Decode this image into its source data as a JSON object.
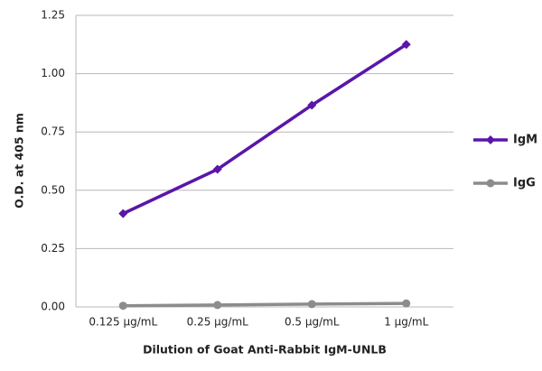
{
  "chart_data": {
    "type": "line",
    "x_label": "Dilution of Goat Anti-Rabbit IgM-UNLB",
    "y_label": "O.D. at 405 nm",
    "categories": [
      "0.125 μg/mL",
      "0.25 μg/mL",
      "0.5 μg/mL",
      "1 μg/mL"
    ],
    "series": [
      {
        "name": "IgM",
        "color": "#5a16a8",
        "marker": "diamond",
        "values": [
          0.4,
          0.59,
          0.865,
          1.125
        ]
      },
      {
        "name": "IgG",
        "color": "#8c8c8c",
        "marker": "circle",
        "values": [
          0.005,
          0.008,
          0.012,
          0.015
        ]
      }
    ],
    "ylim": [
      0,
      1.25
    ],
    "yticks": [
      {
        "value": 0,
        "label": "0.00"
      },
      0.25,
      {
        "value": 0.5,
        "label": "0.50"
      },
      0.75,
      {
        "value": 1,
        "label": "1.00"
      },
      1.25
    ],
    "grid": true,
    "legend": "right"
  }
}
